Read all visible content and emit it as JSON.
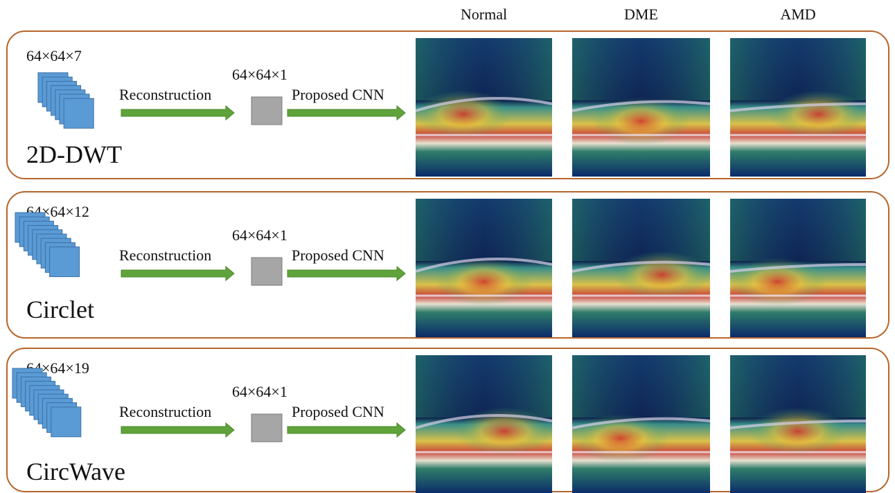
{
  "columns": [
    "Normal",
    "DME",
    "AMD"
  ],
  "rows": [
    {
      "input_size": "64×64×7",
      "output_size": "64×64×1",
      "method": "2D-DWT",
      "step1": "Reconstruction",
      "step2": "Proposed CNN"
    },
    {
      "input_size": "64×64×12",
      "output_size": "64×64×1",
      "method": "Circlet",
      "step1": "Reconstruction",
      "step2": "Proposed CNN"
    },
    {
      "input_size": "64×64×19",
      "output_size": "64×64×1",
      "method": "CircWave",
      "step1": "Reconstruction",
      "step2": "Proposed CNN"
    }
  ]
}
